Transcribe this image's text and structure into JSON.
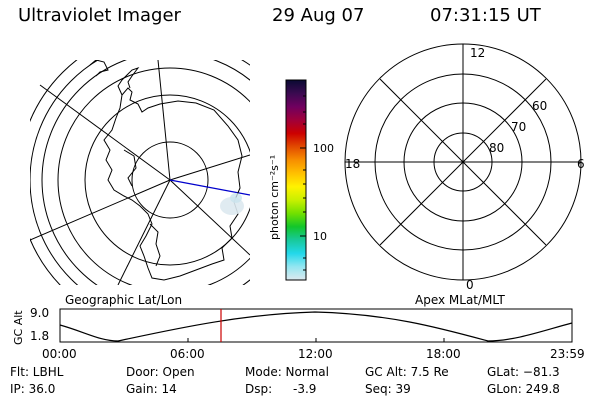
{
  "header": {
    "title": "Ultraviolet Imager",
    "date": "29 Aug 07",
    "time": "07:31:15 UT"
  },
  "colorbar": {
    "label": "photon cm⁻²s⁻¹",
    "ticks": [
      "100",
      "10"
    ],
    "scale": "log",
    "colors": [
      "#0a0a33",
      "#3a0a50",
      "#70005f",
      "#a0003a",
      "#cc0000",
      "#e24a00",
      "#f78e00",
      "#ffc000",
      "#fff200",
      "#c9f000",
      "#72e000",
      "#12c62a",
      "#18c99a",
      "#22d8ea",
      "#93e6f1",
      "#dde9ef"
    ]
  },
  "left_panel": {
    "label": "Geographic Lat/Lon",
    "map_color": "#000000",
    "noon_line_color": "#0000cc"
  },
  "right_panel": {
    "label": "Apex MLat/MLT",
    "mlt_labels": {
      "top": "12",
      "right": "6",
      "bottom": "0",
      "left": "18"
    },
    "lat_labels": [
      "60",
      "70",
      "80"
    ]
  },
  "timeline": {
    "ylabel": "GC Alt",
    "ticks_y": [
      "9.0",
      "1.8"
    ],
    "ticks_x": [
      "00:00",
      "06:00",
      "12:00",
      "18:00",
      "23:59"
    ],
    "current_marker_color": "#cc0000"
  },
  "status": {
    "flt": "Flt: LBHL",
    "ip": "IP: 36.0",
    "door": "Door: Open",
    "gain": "Gain: 14",
    "mode": "Mode: Normal",
    "dsp_label": "Dsp:",
    "dsp_value": "-3.9",
    "gc_alt": "GC Alt: 7.5 Re",
    "seq": "Seq: 39",
    "glat": "GLat: −81.3",
    "glon": "GLon: 249.8"
  }
}
